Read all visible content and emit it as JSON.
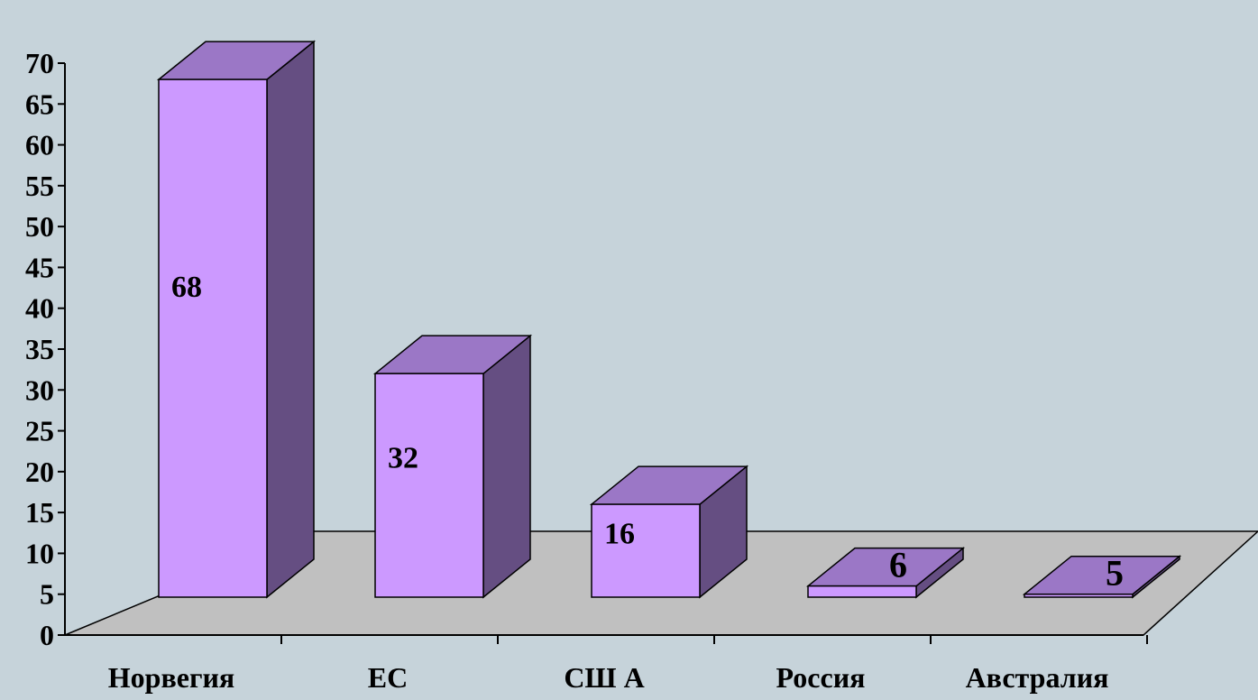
{
  "chart_data": {
    "type": "bar",
    "categories": [
      "Норвегия",
      "ЕС",
      "СШ А",
      "Россия",
      "Австралия"
    ],
    "values": [
      68,
      32,
      16,
      6,
      5
    ],
    "data_labels": [
      "68",
      "32",
      "16",
      "6",
      "5"
    ],
    "y_ticks": [
      "0",
      "5",
      "10",
      "15",
      "20",
      "25",
      "30",
      "35",
      "40",
      "45",
      "50",
      "55",
      "60",
      "65",
      "70"
    ],
    "ylim": [
      0,
      70
    ],
    "title": "",
    "xlabel": "",
    "ylabel": "",
    "grid": false,
    "legend": "none",
    "style": "3d-column",
    "colors": {
      "background": "#C6D3DA",
      "floor": "#C0C0C0",
      "bar_front": "#CC99FF",
      "bar_top": "#9B77C6",
      "bar_side": "#654E82",
      "stroke": "#000000"
    }
  }
}
